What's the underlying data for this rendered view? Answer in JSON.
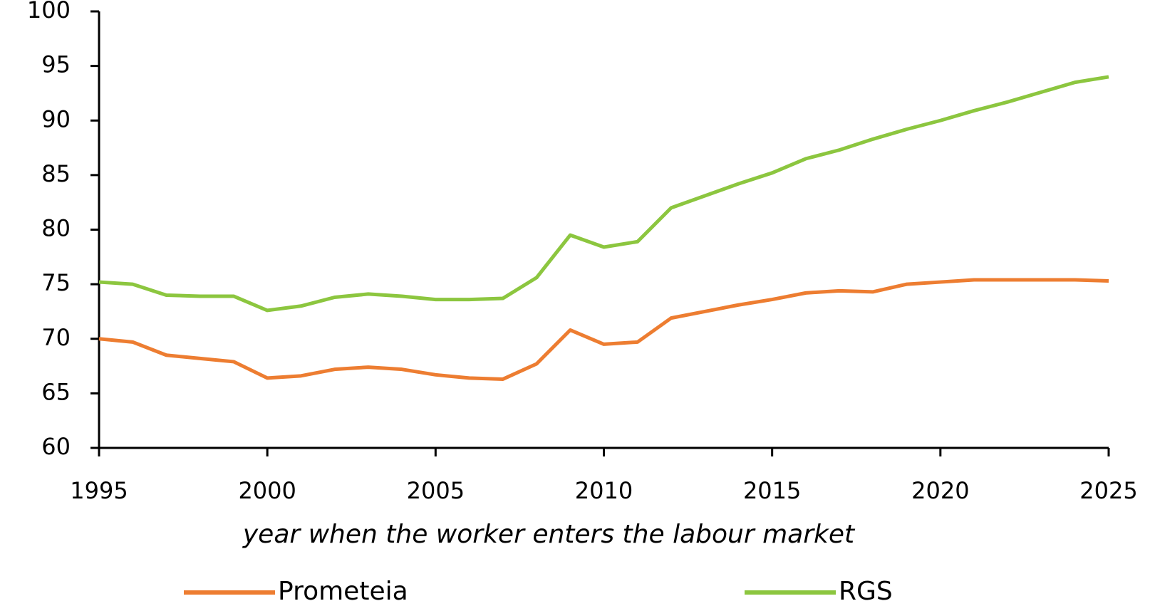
{
  "chart_data": {
    "type": "line",
    "x_label": "year when the worker enters the labour market",
    "x": [
      1995,
      1996,
      1997,
      1998,
      1999,
      2000,
      2001,
      2002,
      2003,
      2004,
      2005,
      2006,
      2007,
      2008,
      2009,
      2010,
      2011,
      2012,
      2013,
      2014,
      2015,
      2016,
      2017,
      2018,
      2019,
      2020,
      2021,
      2022,
      2023,
      2024,
      2025
    ],
    "series": [
      {
        "name": "Prometeia",
        "color": "#ed7d31",
        "values": [
          70.0,
          69.7,
          68.5,
          68.2,
          67.9,
          66.4,
          66.6,
          67.2,
          67.4,
          67.2,
          66.7,
          66.4,
          66.3,
          67.7,
          70.8,
          69.5,
          69.7,
          71.9,
          72.5,
          73.1,
          73.6,
          74.2,
          74.4,
          74.3,
          75.0,
          75.2,
          75.4,
          75.4,
          75.4,
          75.4,
          75.3
        ]
      },
      {
        "name": "RGS",
        "color": "#8cc63f",
        "values": [
          75.2,
          75.0,
          74.0,
          73.9,
          73.9,
          72.6,
          73.0,
          73.8,
          74.1,
          73.9,
          73.6,
          73.6,
          73.7,
          75.6,
          79.5,
          78.4,
          78.9,
          82.0,
          83.1,
          84.2,
          85.2,
          86.5,
          87.3,
          88.3,
          89.2,
          90.0,
          90.9,
          91.7,
          92.6,
          93.5,
          94.0
        ]
      }
    ],
    "xlim": [
      1995,
      2025
    ],
    "xticks": [
      1995,
      2000,
      2005,
      2010,
      2015,
      2020,
      2025
    ],
    "ylim": [
      60,
      100
    ],
    "yticks": [
      60,
      65,
      70,
      75,
      80,
      85,
      90,
      95,
      100
    ],
    "grid": false,
    "legend": "bottom"
  }
}
